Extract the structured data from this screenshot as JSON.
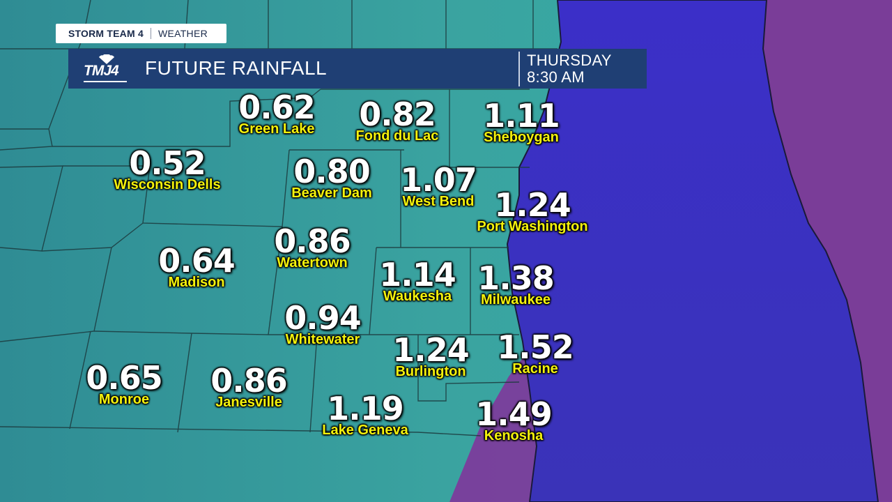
{
  "brand": {
    "tag_primary": "STORM TEAM 4",
    "tag_secondary": "WEATHER",
    "station_logo_text": "TMJ4"
  },
  "header": {
    "title": "FUTURE RAINFALL",
    "day": "THURSDAY",
    "time": "8:30 AM"
  },
  "colors": {
    "land": "#3a9a98",
    "lake_michigan": "#3b2fc4",
    "far_shore": "#7a3d98",
    "header_bg": "#1f3f74",
    "value_text": "#ffffff",
    "city_label": "#f4f20c"
  },
  "cities": [
    {
      "name": "Green Lake",
      "value": "0.62"
    },
    {
      "name": "Fond du Lac",
      "value": "0.82"
    },
    {
      "name": "Sheboygan",
      "value": "1.11"
    },
    {
      "name": "Wisconsin Dells",
      "value": "0.52"
    },
    {
      "name": "Beaver Dam",
      "value": "0.80"
    },
    {
      "name": "West Bend",
      "value": "1.07"
    },
    {
      "name": "Port Washington",
      "value": "1.24"
    },
    {
      "name": "Watertown",
      "value": "0.86"
    },
    {
      "name": "Madison",
      "value": "0.64"
    },
    {
      "name": "Waukesha",
      "value": "1.14"
    },
    {
      "name": "Milwaukee",
      "value": "1.38"
    },
    {
      "name": "Whitewater",
      "value": "0.94"
    },
    {
      "name": "Burlington",
      "value": "1.24"
    },
    {
      "name": "Racine",
      "value": "1.52"
    },
    {
      "name": "Monroe",
      "value": "0.65"
    },
    {
      "name": "Janesville",
      "value": "0.86"
    },
    {
      "name": "Lake Geneva",
      "value": "1.19"
    },
    {
      "name": "Kenosha",
      "value": "1.49"
    }
  ]
}
